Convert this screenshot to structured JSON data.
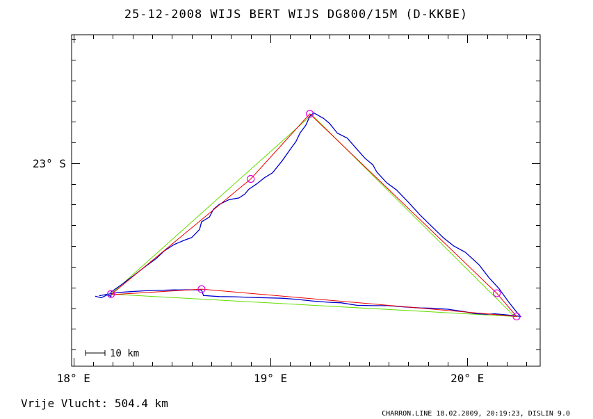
{
  "title": "25-12-2008   WIJS BERT WIJS   DG800/15M (D-KKBE)",
  "footer_left": "Vrije Vlucht:  504.4 km",
  "footer_right": "CHARRON.LINE 18.02.2009, 20:19:23, DISLIN 9.0",
  "chart_data": {
    "type": "line",
    "title": "25-12-2008   WIJS BERT WIJS   DG800/15M (D-KKBE)",
    "xlabel": "",
    "ylabel": "",
    "x_unit": "deg E longitude",
    "y_unit": "deg latitude (negative = S)",
    "xlim": [
      17.99,
      20.37
    ],
    "ylim": [
      -23.98,
      -22.38
    ],
    "x_ticks": [
      {
        "value": 18,
        "label": "18° E"
      },
      {
        "value": 19,
        "label": "19° E"
      },
      {
        "value": 20,
        "label": "20° E"
      }
    ],
    "y_ticks": [
      {
        "value": -23,
        "label": "23° S"
      }
    ],
    "scale_bar": {
      "label": "10 km",
      "length_km": 10
    },
    "colors": {
      "track": "#0000cc",
      "optimized_route": "#ee0000",
      "turnpoint_route": "#66dd00",
      "turnpoints": "#e000e0"
    },
    "series": [
      {
        "key": "track",
        "points": [
          [
            18.11,
            -23.642
          ],
          [
            18.14,
            -23.65
          ],
          [
            18.17,
            -23.636
          ],
          [
            18.19,
            -23.643
          ],
          [
            18.19,
            -23.622
          ],
          [
            18.24,
            -23.589
          ],
          [
            18.3,
            -23.546
          ],
          [
            18.36,
            -23.502
          ],
          [
            18.42,
            -23.46
          ],
          [
            18.46,
            -23.424
          ],
          [
            18.51,
            -23.393
          ],
          [
            18.56,
            -23.373
          ],
          [
            18.6,
            -23.359
          ],
          [
            18.64,
            -23.32
          ],
          [
            18.65,
            -23.283
          ],
          [
            18.69,
            -23.26
          ],
          [
            18.71,
            -23.223
          ],
          [
            18.74,
            -23.199
          ],
          [
            18.79,
            -23.176
          ],
          [
            18.84,
            -23.168
          ],
          [
            18.87,
            -23.149
          ],
          [
            18.89,
            -23.126
          ],
          [
            18.93,
            -23.1
          ],
          [
            18.97,
            -23.07
          ],
          [
            19.01,
            -23.047
          ],
          [
            19.06,
            -22.988
          ],
          [
            19.1,
            -22.934
          ],
          [
            19.13,
            -22.895
          ],
          [
            19.15,
            -22.855
          ],
          [
            19.18,
            -22.816
          ],
          [
            19.2,
            -22.773
          ],
          [
            19.22,
            -22.757
          ],
          [
            19.27,
            -22.784
          ],
          [
            19.3,
            -22.808
          ],
          [
            19.34,
            -22.855
          ],
          [
            19.39,
            -22.879
          ],
          [
            19.44,
            -22.933
          ],
          [
            19.48,
            -22.976
          ],
          [
            19.52,
            -23.008
          ],
          [
            19.54,
            -23.042
          ],
          [
            19.59,
            -23.094
          ],
          [
            19.64,
            -23.129
          ],
          [
            19.7,
            -23.188
          ],
          [
            19.76,
            -23.25
          ],
          [
            19.82,
            -23.306
          ],
          [
            19.88,
            -23.361
          ],
          [
            19.93,
            -23.399
          ],
          [
            19.99,
            -23.43
          ],
          [
            20.06,
            -23.491
          ],
          [
            20.11,
            -23.553
          ],
          [
            20.16,
            -23.604
          ],
          [
            20.21,
            -23.67
          ],
          [
            20.25,
            -23.718
          ],
          [
            20.27,
            -23.74
          ],
          [
            20.2,
            -23.732
          ],
          [
            20.14,
            -23.727
          ],
          [
            20.1,
            -23.729
          ],
          [
            20.04,
            -23.726
          ],
          [
            19.98,
            -23.716
          ],
          [
            19.9,
            -23.705
          ],
          [
            19.82,
            -23.7
          ],
          [
            19.76,
            -23.699
          ],
          [
            19.68,
            -23.694
          ],
          [
            19.6,
            -23.688
          ],
          [
            19.52,
            -23.688
          ],
          [
            19.44,
            -23.686
          ],
          [
            19.36,
            -23.674
          ],
          [
            19.29,
            -23.671
          ],
          [
            19.22,
            -23.666
          ],
          [
            19.14,
            -23.658
          ],
          [
            19.06,
            -23.652
          ],
          [
            18.98,
            -23.65
          ],
          [
            18.9,
            -23.648
          ],
          [
            18.82,
            -23.645
          ],
          [
            18.74,
            -23.644
          ],
          [
            18.66,
            -23.639
          ],
          [
            18.65,
            -23.612
          ],
          [
            18.59,
            -23.611
          ],
          [
            18.5,
            -23.612
          ],
          [
            18.43,
            -23.614
          ],
          [
            18.36,
            -23.616
          ],
          [
            18.29,
            -23.62
          ],
          [
            18.23,
            -23.624
          ],
          [
            18.2,
            -23.628
          ],
          [
            18.16,
            -23.635
          ],
          [
            18.13,
            -23.64
          ]
        ]
      },
      {
        "key": "optimized_route",
        "points": [
          [
            18.19,
            -23.635
          ],
          [
            18.9,
            -23.076
          ],
          [
            19.2,
            -22.762
          ],
          [
            20.15,
            -23.628
          ],
          [
            20.25,
            -23.74
          ],
          [
            18.65,
            -23.608
          ],
          [
            18.19,
            -23.635
          ]
        ]
      },
      {
        "key": "turnpoint_route",
        "points": [
          [
            18.19,
            -23.632
          ],
          [
            19.21,
            -22.766
          ],
          [
            20.24,
            -23.74
          ],
          [
            18.19,
            -23.632
          ]
        ]
      },
      {
        "key": "turnpoints",
        "points": [
          [
            18.19,
            -23.632
          ],
          [
            18.9,
            -23.076
          ],
          [
            19.2,
            -22.762
          ],
          [
            20.15,
            -23.628
          ],
          [
            20.25,
            -23.74
          ],
          [
            18.65,
            -23.608
          ]
        ]
      }
    ],
    "distance_km": 504.4
  }
}
